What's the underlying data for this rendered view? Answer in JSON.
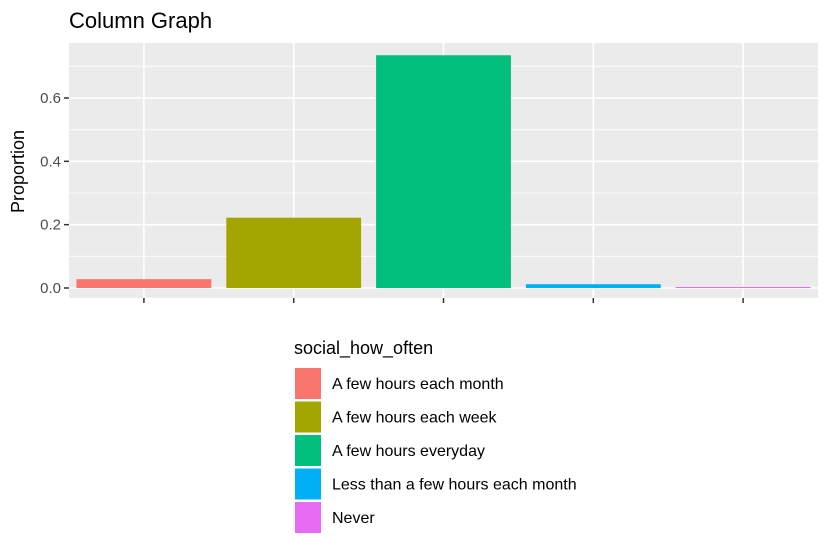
{
  "chart_data": {
    "type": "bar",
    "title": "Column Graph",
    "xlabel": "",
    "ylabel": "Proportion",
    "categories": [
      "A few hours each month",
      "A few hours each week",
      "A few hours everyday",
      "Less than a few hours each month",
      "Never"
    ],
    "values": [
      0.028,
      0.222,
      0.735,
      0.012,
      0.003
    ],
    "colors": [
      "#F8766D",
      "#A3A500",
      "#00BF7D",
      "#00B0F6",
      "#E76BF3"
    ],
    "ylim": [
      -0.035,
      0.77
    ],
    "yticks": [
      0.0,
      0.2,
      0.4,
      0.6
    ],
    "ytick_labels": [
      "0.0",
      "0.2",
      "0.4",
      "0.6"
    ],
    "grid": true,
    "panel_background": "#EBEBEB",
    "x_tick_labels_shown": false,
    "legend": {
      "title": "social_how_often",
      "position": "bottom",
      "entries": [
        "A few hours each month",
        "A few hours each week",
        "A few hours everyday",
        "Less than a few hours each month",
        "Never"
      ]
    }
  }
}
